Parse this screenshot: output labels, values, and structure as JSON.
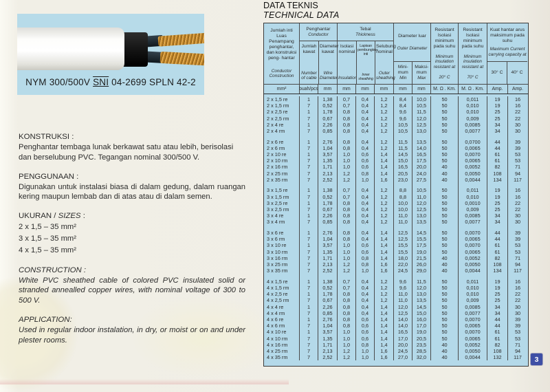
{
  "page": {
    "number": "3"
  },
  "photo": {
    "label_prefix": "NYM 300/500V",
    "label_sni": "SNI",
    "label_suffix": "04-2699  SPLN 42-2"
  },
  "sections": {
    "konstruksi": {
      "heading": "KONSTRUKSI :",
      "body": "Penghantar tembaga lunak berkawat satu atau lebih, berisolasi dan berselubung PVC. Tegangan nominal 300/500 V."
    },
    "penggunaan": {
      "heading": "PENGGUNAAN :",
      "body": "Digunakan untuk instalasi biasa di dalam gedung, dalam ruangan kering maupun lembab dan di atas atau di dalam semen."
    },
    "ukuran": {
      "heading_id": "UKURAN /",
      "heading_en": "SIZES",
      "heading_colon": " :",
      "sizes": [
        "2 x 1,5 – 35 mm²",
        "3 x 1,5 – 35 mm²",
        "4 x 1,5 – 35 mm²"
      ]
    },
    "construction": {
      "heading": "CONSTRUCTION :",
      "body": "White PVC sheathed cable of colored PVC insulated solid or stranded annealled copper wires, with nominal voltage of 300 to 500 V."
    },
    "application": {
      "heading": "APPLICATION:",
      "body": "Used in regular indoor instalation, in dry, or moist or on and under plester rooms."
    }
  },
  "table": {
    "title_id": "DATA TEKNIS",
    "title_en": "TECHNICAL DATA",
    "header": {
      "col1_id": "Jumlah inti Luas Penampang penghantar, dan konstruksi peng- hantar",
      "col1_en": "Conductor Construction",
      "cond_id": "Penghantar",
      "cond_en": "Conductor",
      "jumlah_id": "Jumlah kawat",
      "jumlah_en": "Number of cable",
      "diam_id": "Diameter kawat",
      "diam_en": "Wire Diameter",
      "tebal_id": "Tebal",
      "tebal_en": "Thickness",
      "isolasi_id": "Isolasi nominal",
      "isolasi_en": "Insulation",
      "lapisan_id": "Lapisan pembungkus inti",
      "lapisan_en": "Inner sheathing",
      "selubung_id": "Selubung nominal",
      "selubung_en": "Outer sheathing",
      "dialuar_id": "Diameter luar",
      "dialuar_en": "Outer Diameter",
      "min_id": "Mini- mum",
      "min_en": "Min",
      "max_id": "Maksi- mum",
      "max_en": "Max",
      "res_id": "Resistant Isolasi minimum pada suhu",
      "res_en": "Minimum insulation resistant at",
      "temp20": "20° C",
      "temp70": "70° C",
      "kuat_id": "Kuat hantar arus maksimum pada suhu",
      "kuat_en": "Maximum Current carrying capacity at",
      "temp30": "30° C",
      "temp40": "40° C"
    },
    "units": [
      "mm²",
      "buah/pcs",
      "mm",
      "mm",
      "mm",
      "mm",
      "mm",
      "mm",
      "M. Ω . Km.",
      "M. Ω . Km.",
      "Amp.",
      "Amp."
    ],
    "rows": [
      [
        "2 x 1,5 re",
        "1",
        "1,38",
        "0,7",
        "0,4",
        "1,2",
        "8,4",
        "10,0",
        "50",
        "0,011",
        "19",
        "16"
      ],
      [
        "2 x 1,5 rm",
        "7",
        "0,52",
        "0,7",
        "0,4",
        "1,2",
        "8,4",
        "10,5",
        "50",
        "0,010",
        "19",
        "16"
      ],
      [
        "2 x 2,5 re",
        "1",
        "1,78",
        "0,8",
        "0,4",
        "1,2",
        "9,6",
        "11,5",
        "50",
        "0,010",
        "25",
        "22"
      ],
      [
        "2 x 2,5 rm",
        "7",
        "0,67",
        "0,8",
        "0,4",
        "1,2",
        "9,6",
        "12,0",
        "50",
        "0,009",
        "25",
        "22"
      ],
      [
        "2 x 4 re",
        "1",
        "2,26",
        "0,8",
        "0,4",
        "1,2",
        "10,5",
        "12,5",
        "50",
        "0,0085",
        "34",
        "30"
      ],
      [
        "2 x 4 rm",
        "7",
        "0,85",
        "0,8",
        "0,4",
        "1,2",
        "10,5",
        "13,0",
        "50",
        "0,0077",
        "34",
        "30"
      ],
      "gap",
      [
        "2 x 6 re",
        "1",
        "2,76",
        "0,8",
        "0,4",
        "1,2",
        "11,5",
        "13,5",
        "50",
        "0,0700",
        "44",
        "39"
      ],
      [
        "2 x 6 rm",
        "7",
        "1,04",
        "0,8",
        "0,4",
        "1,2",
        "11,5",
        "14,0",
        "50",
        "0,0065",
        "44",
        "39"
      ],
      [
        "2 x 10 re",
        "1",
        "3,57",
        "1,0",
        "0,6",
        "1,4",
        "14,5",
        "16,5",
        "50",
        "0,0070",
        "61",
        "53"
      ],
      [
        "2 x 10 rm",
        "7",
        "1,35",
        "1,0",
        "0,6",
        "1,4",
        "15,0",
        "17,5",
        "50",
        "0,0065",
        "61",
        "53"
      ],
      [
        "2 x 16 rm",
        "7",
        "1,71",
        "1,0",
        "0,6",
        "1,4",
        "16,5",
        "20,0",
        "40",
        "0,0052",
        "82",
        "71"
      ],
      [
        "2 x 25 rm",
        "7",
        "2,13",
        "1,2",
        "0,8",
        "1,4",
        "20,5",
        "24,0",
        "40",
        "0,0050",
        "108",
        "94"
      ],
      [
        "2 x 35 rm",
        "7",
        "2,52",
        "1,2",
        "1,0",
        "1,6",
        "23,0",
        "27,5",
        "40",
        "0,0044",
        "134",
        "117"
      ],
      "gap",
      [
        "3 x 1,5 re",
        "1",
        "1,38",
        "0,7",
        "0,4",
        "1,2",
        "8,8",
        "10,5",
        "50",
        "0,011",
        "19",
        "16"
      ],
      [
        "3 x 1,5 rm",
        "7",
        "0,52",
        "0,7",
        "0,4",
        "1,2",
        "8,8",
        "11,0",
        "50",
        "0,010",
        "19",
        "16"
      ],
      [
        "3 x 2,5 re",
        "1",
        "1,78",
        "0,8",
        "0,4",
        "1,2",
        "10,0",
        "12,0",
        "50",
        "0,0010",
        "25",
        "22"
      ],
      [
        "3 x 2,5 rm",
        "7",
        "0,67",
        "0,8",
        "0,4",
        "1,2",
        "10,0",
        "12,5",
        "50",
        "0,009",
        "25",
        "22"
      ],
      [
        "3 x 4 re",
        "1",
        "2,26",
        "0,8",
        "0,4",
        "1,2",
        "11,0",
        "13,0",
        "50",
        "0,0085",
        "34",
        "30"
      ],
      [
        "3 x 4 rm",
        "7",
        "0,85",
        "0,8",
        "0,4",
        "1,2",
        "11,0",
        "13,5",
        "50",
        "0,0077",
        "34",
        "30"
      ],
      "gap",
      [
        "3 x 6 re",
        "1",
        "2,76",
        "0,8",
        "0,4",
        "1,4",
        "12,5",
        "14,5",
        "50",
        "0,0070",
        "44",
        "39"
      ],
      [
        "3 x 6 rm",
        "7",
        "1,04",
        "0,8",
        "0,4",
        "1,4",
        "12,5",
        "15,5",
        "50",
        "0,0065",
        "44",
        "39"
      ],
      [
        "3 x 10 re",
        "1",
        "3,57",
        "1,0",
        "0,6",
        "1,4",
        "15,5",
        "17,5",
        "50",
        "0,0070",
        "61",
        "53"
      ],
      [
        "3 x 10 rm",
        "7",
        "1,35",
        "1,0",
        "0,6",
        "1,4",
        "15,5",
        "19,0",
        "50",
        "0,0065",
        "61",
        "53"
      ],
      [
        "3 x 16 rm",
        "7",
        "1,71",
        "1,0",
        "0,8",
        "1,4",
        "18,0",
        "21,5",
        "40",
        "0,0052",
        "82",
        "71"
      ],
      [
        "3 x 25 rm",
        "7",
        "2,13",
        "1,2",
        "0,8",
        "1,6",
        "22,0",
        "26,0",
        "40",
        "0,0050",
        "108",
        "94"
      ],
      [
        "3 x 35 rm",
        "7",
        "2,52",
        "1,2",
        "1,0",
        "1,6",
        "24,5",
        "29,0",
        "40",
        "0,0044",
        "134",
        "117"
      ],
      "gap",
      [
        "4 x 1,5 re",
        "1",
        "1,38",
        "0,7",
        "0,4",
        "1,2",
        "9,6",
        "11,5",
        "50",
        "0,011",
        "19",
        "16"
      ],
      [
        "4 x 1,5 rm",
        "7",
        "0,52",
        "0,7",
        "0,4",
        "1,2",
        "9,6",
        "12,0",
        "50",
        "0,010",
        "19",
        "16"
      ],
      [
        "4 x 2,5 re",
        "1",
        "1,78",
        "0,8",
        "0,4",
        "1,2",
        "11,0",
        "13,0",
        "50",
        "0,010",
        "25",
        "22"
      ],
      [
        "4 x 2,5 rm",
        "7",
        "0,67",
        "0,8",
        "0,4",
        "1,2",
        "11,0",
        "13,5",
        "50",
        "0,009",
        "25",
        "22"
      ],
      [
        "4 x 4 re",
        "1",
        "2,26",
        "0,8",
        "0,4",
        "1,4",
        "12,0",
        "14,5",
        "50",
        "0,0085",
        "34",
        "30"
      ],
      [
        "4 x 4 rm",
        "7",
        "0,85",
        "0,8",
        "0,4",
        "1,4",
        "12,5",
        "15,0",
        "50",
        "0,0077",
        "34",
        "30"
      ],
      [
        "4 x 6 re",
        "1",
        "2,76",
        "0,8",
        "0,6",
        "1,4",
        "14,0",
        "16,0",
        "50",
        "0,0070",
        "44",
        "39"
      ],
      [
        "4 x 6 rm",
        "7",
        "1,04",
        "0,8",
        "0,6",
        "1,4",
        "14,0",
        "17,0",
        "50",
        "0,0065",
        "44",
        "39"
      ],
      [
        "4 x 10 re",
        "1",
        "3,57",
        "1,0",
        "0,6",
        "1,4",
        "16,5",
        "19,0",
        "50",
        "0,0070",
        "61",
        "53"
      ],
      [
        "4 x 10 rm",
        "7",
        "1,35",
        "1,0",
        "0,6",
        "1,4",
        "17,0",
        "20,5",
        "50",
        "0,0065",
        "61",
        "53"
      ],
      [
        "4 x 16 rm",
        "7",
        "1,71",
        "1,0",
        "0,8",
        "1,4",
        "20,0",
        "23,5",
        "40",
        "0,0052",
        "82",
        "71"
      ],
      [
        "4 x 25 rm",
        "7",
        "2,13",
        "1,2",
        "1,0",
        "1,6",
        "24,5",
        "28,5",
        "40",
        "0,0050",
        "108",
        "94"
      ],
      [
        "4 x 35 rm",
        "7",
        "2,52",
        "1,2",
        "1,0",
        "1,6",
        "27,0",
        "32,0",
        "40",
        "0,0044",
        "132",
        "117"
      ]
    ],
    "colors": {
      "table_bg": "#b4d9e9",
      "page_bg": "#f0eee5",
      "badge_bg": "#3e4fa5"
    }
  }
}
